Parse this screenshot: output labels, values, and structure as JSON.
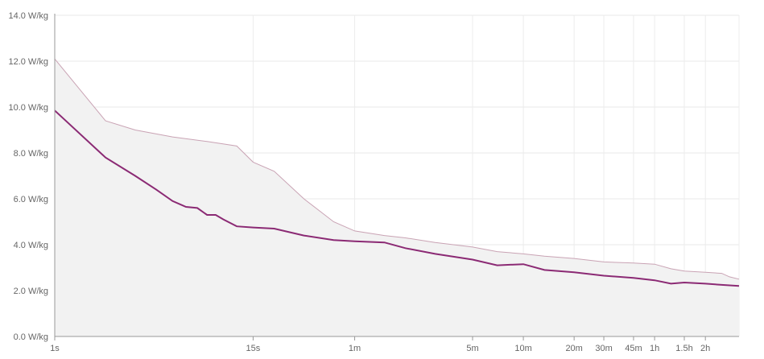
{
  "chart_data": {
    "type": "line",
    "title": "",
    "xlabel": "",
    "ylabel": "",
    "x_scale": "log",
    "x_unit": "seconds",
    "xlim": [
      1,
      11400
    ],
    "ylim": [
      0,
      14
    ],
    "grid": true,
    "x_ticks": [
      {
        "value": 1,
        "label": "1s"
      },
      {
        "value": 15,
        "label": "15s"
      },
      {
        "value": 60,
        "label": "1m"
      },
      {
        "value": 300,
        "label": "5m"
      },
      {
        "value": 600,
        "label": "10m"
      },
      {
        "value": 1200,
        "label": "20m"
      },
      {
        "value": 1800,
        "label": "30m"
      },
      {
        "value": 2700,
        "label": "45m"
      },
      {
        "value": 3600,
        "label": "1h"
      },
      {
        "value": 5400,
        "label": "1.5h"
      },
      {
        "value": 7200,
        "label": "2h"
      }
    ],
    "y_ticks": [
      {
        "value": 0,
        "label": "0.0 W/kg"
      },
      {
        "value": 2,
        "label": "2.0 W/kg"
      },
      {
        "value": 4,
        "label": "4.0 W/kg"
      },
      {
        "value": 6,
        "label": "6.0 W/kg"
      },
      {
        "value": 8,
        "label": "8.0 W/kg"
      },
      {
        "value": 10,
        "label": "10.0 W/kg"
      },
      {
        "value": 12,
        "label": "12.0 W/kg"
      },
      {
        "value": 14,
        "label": "14.0 W/kg"
      }
    ],
    "series": [
      {
        "role": "area",
        "color": "#c9a3b4",
        "fill": "#f2f2f2",
        "points": [
          [
            1,
            12.1
          ],
          [
            2,
            9.4
          ],
          [
            3,
            9.0
          ],
          [
            5,
            8.7
          ],
          [
            8,
            8.5
          ],
          [
            12,
            8.3
          ],
          [
            15,
            7.6
          ],
          [
            20,
            7.2
          ],
          [
            30,
            6.0
          ],
          [
            45,
            5.0
          ],
          [
            60,
            4.6
          ],
          [
            90,
            4.4
          ],
          [
            120,
            4.3
          ],
          [
            180,
            4.1
          ],
          [
            300,
            3.9
          ],
          [
            420,
            3.7
          ],
          [
            600,
            3.6
          ],
          [
            800,
            3.5
          ],
          [
            1200,
            3.4
          ],
          [
            1800,
            3.25
          ],
          [
            2700,
            3.2
          ],
          [
            3600,
            3.15
          ],
          [
            4500,
            2.95
          ],
          [
            5400,
            2.85
          ],
          [
            7200,
            2.8
          ],
          [
            9000,
            2.75
          ],
          [
            10000,
            2.6
          ],
          [
            11400,
            2.5
          ]
        ]
      },
      {
        "role": "line",
        "color": "#8b2a74",
        "points": [
          [
            1,
            9.85
          ],
          [
            2,
            7.8
          ],
          [
            3,
            7.0
          ],
          [
            4,
            6.4
          ],
          [
            5,
            5.9
          ],
          [
            6,
            5.65
          ],
          [
            7,
            5.6
          ],
          [
            8,
            5.3
          ],
          [
            9,
            5.3
          ],
          [
            10,
            5.1
          ],
          [
            12,
            4.8
          ],
          [
            15,
            4.75
          ],
          [
            20,
            4.7
          ],
          [
            30,
            4.4
          ],
          [
            45,
            4.2
          ],
          [
            60,
            4.15
          ],
          [
            90,
            4.1
          ],
          [
            120,
            3.85
          ],
          [
            180,
            3.6
          ],
          [
            300,
            3.35
          ],
          [
            420,
            3.1
          ],
          [
            600,
            3.15
          ],
          [
            800,
            2.9
          ],
          [
            1200,
            2.8
          ],
          [
            1800,
            2.65
          ],
          [
            2700,
            2.55
          ],
          [
            3600,
            2.45
          ],
          [
            4500,
            2.3
          ],
          [
            5400,
            2.35
          ],
          [
            7200,
            2.3
          ],
          [
            9000,
            2.25
          ],
          [
            11400,
            2.2
          ]
        ]
      }
    ]
  }
}
